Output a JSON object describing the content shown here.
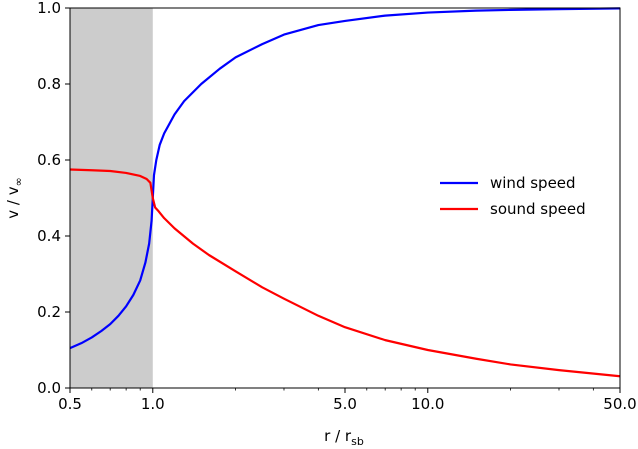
{
  "chart_data": {
    "type": "line",
    "xscale": "log",
    "xlim": [
      0.5,
      50.0
    ],
    "ylim": [
      0.0,
      1.0
    ],
    "xticks": [
      0.5,
      1.0,
      5.0,
      10.0,
      50.0
    ],
    "xtick_labels": [
      "0.5",
      "1.0",
      "5.0",
      "10.0",
      "50.0"
    ],
    "yticks": [
      0.0,
      0.2,
      0.4,
      0.6,
      0.8,
      1.0
    ],
    "ytick_labels": [
      "0.0",
      "0.2",
      "0.4",
      "0.6",
      "0.8",
      "1.0"
    ],
    "xlabel": {
      "main": "r / r",
      "sub": "sb"
    },
    "ylabel": {
      "main": "v / v",
      "sub": "∞"
    },
    "shaded_region": {
      "x_from": 0.5,
      "x_to": 1.0,
      "color": "#cccccc"
    },
    "legend_position": "center-right",
    "series": [
      {
        "name": "wind speed",
        "color": "#0000ff",
        "points": [
          [
            0.5,
            0.105
          ],
          [
            0.55,
            0.118
          ],
          [
            0.6,
            0.133
          ],
          [
            0.65,
            0.15
          ],
          [
            0.7,
            0.168
          ],
          [
            0.75,
            0.19
          ],
          [
            0.8,
            0.215
          ],
          [
            0.85,
            0.245
          ],
          [
            0.9,
            0.283
          ],
          [
            0.94,
            0.33
          ],
          [
            0.97,
            0.38
          ],
          [
            0.99,
            0.44
          ],
          [
            1.0,
            0.5
          ],
          [
            1.01,
            0.56
          ],
          [
            1.03,
            0.6
          ],
          [
            1.06,
            0.64
          ],
          [
            1.1,
            0.67
          ],
          [
            1.2,
            0.72
          ],
          [
            1.3,
            0.755
          ],
          [
            1.5,
            0.8
          ],
          [
            1.75,
            0.84
          ],
          [
            2.0,
            0.87
          ],
          [
            2.5,
            0.905
          ],
          [
            3.0,
            0.93
          ],
          [
            4.0,
            0.955
          ],
          [
            5.0,
            0.966
          ],
          [
            7.0,
            0.98
          ],
          [
            10.0,
            0.988
          ],
          [
            15.0,
            0.993
          ],
          [
            20.0,
            0.995
          ],
          [
            30.0,
            0.997
          ],
          [
            50.0,
            0.999
          ]
        ]
      },
      {
        "name": "sound speed",
        "color": "#ff0000",
        "points": [
          [
            0.5,
            0.575
          ],
          [
            0.6,
            0.573
          ],
          [
            0.7,
            0.571
          ],
          [
            0.8,
            0.566
          ],
          [
            0.9,
            0.558
          ],
          [
            0.95,
            0.55
          ],
          [
            0.98,
            0.54
          ],
          [
            1.0,
            0.5
          ],
          [
            1.02,
            0.475
          ],
          [
            1.05,
            0.465
          ],
          [
            1.1,
            0.447
          ],
          [
            1.2,
            0.42
          ],
          [
            1.4,
            0.38
          ],
          [
            1.6,
            0.35
          ],
          [
            2.0,
            0.307
          ],
          [
            2.5,
            0.265
          ],
          [
            3.0,
            0.235
          ],
          [
            4.0,
            0.19
          ],
          [
            5.0,
            0.16
          ],
          [
            7.0,
            0.126
          ],
          [
            10.0,
            0.1
          ],
          [
            15.0,
            0.077
          ],
          [
            20.0,
            0.062
          ],
          [
            30.0,
            0.047
          ],
          [
            50.0,
            0.031
          ]
        ]
      }
    ]
  }
}
